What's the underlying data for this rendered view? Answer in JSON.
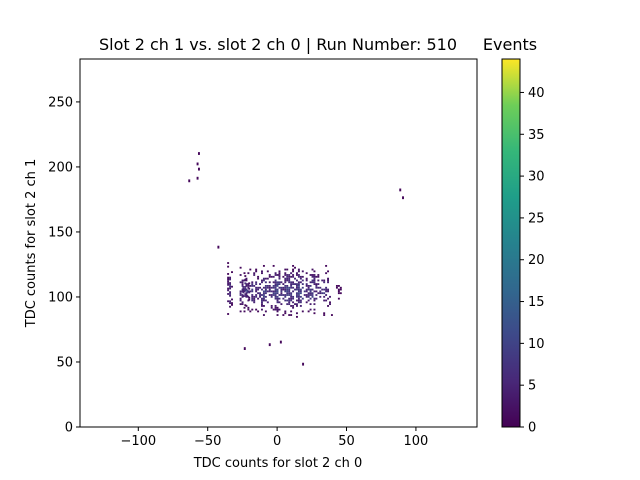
{
  "chart_data": {
    "type": "heatmap",
    "title": "Slot 2 ch 1 vs. slot 2 ch 0 | Run Number: 510",
    "xlabel": "TDC counts for slot 2 ch 0",
    "ylabel": "TDC counts for slot 2 ch 1",
    "xlim": [
      -142,
      144
    ],
    "ylim": [
      0,
      283
    ],
    "xticks": [
      -100,
      -50,
      0,
      50,
      100
    ],
    "yticks": [
      0,
      50,
      100,
      150,
      200,
      250
    ],
    "grid": false,
    "colorbar": {
      "label": "Events",
      "colormap": "viridis",
      "range": [
        0,
        44
      ],
      "ticks": [
        0,
        5,
        10,
        15,
        20,
        25,
        30,
        35,
        40
      ]
    },
    "clusters": [
      {
        "x_range": [
          -36,
          -33
        ],
        "y_range": [
          82,
          127
        ],
        "events_peak": 8
      },
      {
        "x_range": [
          -27,
          40
        ],
        "y_range": [
          84,
          124
        ],
        "events_peak": 13
      },
      {
        "x_range": [
          -25,
          -20
        ],
        "y_range": [
          93,
          116
        ],
        "events_peak": 14
      },
      {
        "x_range": [
          41,
          46
        ],
        "y_range": [
          98,
          111
        ],
        "events_peak": 2
      }
    ],
    "points": [
      {
        "x": -57,
        "y": 210,
        "events": 1
      },
      {
        "x": -58,
        "y": 202,
        "events": 1
      },
      {
        "x": -57,
        "y": 198,
        "events": 1
      },
      {
        "x": -58,
        "y": 191,
        "events": 1
      },
      {
        "x": -64,
        "y": 189,
        "events": 1
      },
      {
        "x": 88,
        "y": 182,
        "events": 1
      },
      {
        "x": 90,
        "y": 176,
        "events": 1
      },
      {
        "x": -43,
        "y": 138,
        "events": 1
      },
      {
        "x": -24,
        "y": 60,
        "events": 1
      },
      {
        "x": 18,
        "y": 48,
        "events": 1
      },
      {
        "x": -6,
        "y": 63,
        "events": 1
      },
      {
        "x": 2,
        "y": 65,
        "events": 1
      }
    ]
  }
}
